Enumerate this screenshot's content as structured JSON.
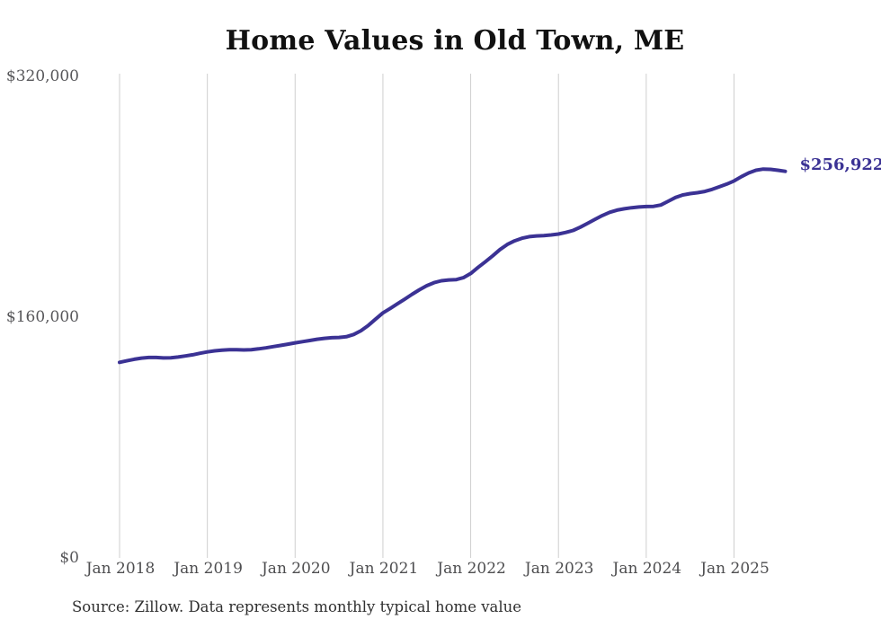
{
  "chart_data": {
    "type": "line",
    "title": "Home Values in Old Town, ME",
    "xlabel": "",
    "ylabel": "",
    "ylim": [
      0,
      320000
    ],
    "y_tick_values": [
      320000,
      160000,
      0
    ],
    "y_tick_labels": [
      "$320,000",
      "$160,000",
      "$0"
    ],
    "x_tick_labels": [
      "Jan 2018",
      "Jan 2019",
      "Jan 2020",
      "Jan 2021",
      "Jan 2022",
      "Jan 2023",
      "Jan 2024",
      "Jan 2025"
    ],
    "x_start": "Jan 2018",
    "x_end": "Aug 2025",
    "frequency": "monthly",
    "grid": "vertical-only",
    "legend": "none",
    "series": [
      {
        "name": "Typical home value",
        "color": "#3b3294",
        "values": [
          130000,
          131000,
          132000,
          132800,
          133200,
          133200,
          132900,
          133000,
          133500,
          134200,
          135000,
          136000,
          136900,
          137600,
          138100,
          138300,
          138300,
          138200,
          138400,
          138900,
          139600,
          140400,
          141200,
          142000,
          142900,
          143700,
          144500,
          145300,
          145900,
          146300,
          146500,
          147000,
          148500,
          151000,
          154500,
          158700,
          162800,
          165800,
          168900,
          172000,
          175200,
          178200,
          180900,
          182900,
          184200,
          184700,
          184900,
          186200,
          189000,
          193000,
          196800,
          200700,
          204900,
          208300,
          210700,
          212400,
          213500,
          214000,
          214200,
          214600,
          215200,
          216300,
          217600,
          219800,
          222400,
          225000,
          227500,
          229700,
          231100,
          232000,
          232700,
          233200,
          233500,
          233600,
          234500,
          237000,
          239500,
          241200,
          242100,
          242700,
          243500,
          244900,
          246600,
          248400,
          250500,
          253300,
          255800,
          257600,
          258400,
          258200,
          257600,
          256922
        ]
      }
    ],
    "latest_value": 256922,
    "end_label": "$256,922",
    "gridline_color": "#cfcfcf",
    "background_color": "#ffffff"
  },
  "source_note": "Source: Zillow. Data represents monthly typical home value"
}
